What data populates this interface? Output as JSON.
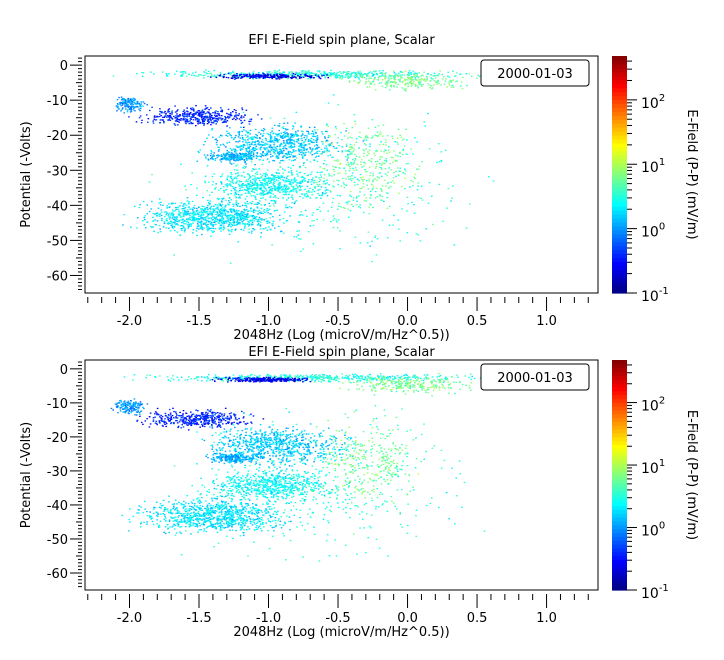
{
  "chart_data": [
    {
      "type": "scatter",
      "title": "EFI  E-Field spin plane, Scalar",
      "xlabel": "2048Hz (Log (microV/m/Hz^0.5))",
      "ylabel": "Potential (-Volts)",
      "annotation": "2000-01-03",
      "xlim": [
        -2.32,
        1.37
      ],
      "ylim": [
        -65,
        2.6
      ],
      "xticks": [
        -2.0,
        -1.5,
        -1.0,
        -0.5,
        0.0,
        0.5,
        1.0
      ],
      "xtick_labels": [
        "-2.0",
        "-1.5",
        "-1.0",
        "-0.5",
        "0.0",
        "0.5",
        "1.0"
      ],
      "yticks": [
        0,
        -10,
        -20,
        -30,
        -40,
        -50,
        -60
      ],
      "ytick_labels": [
        "0",
        "-10",
        "-20",
        "-30",
        "-40",
        "-50",
        "-60"
      ],
      "colorbar": {
        "label": "E-Field (P-P) (mV/m)",
        "scale": "log",
        "range": [
          0.1,
          480
        ],
        "colormap": "jet",
        "ticks": [
          {
            "base": "10",
            "exp": "2",
            "value": 100
          },
          {
            "base": "10",
            "exp": "1",
            "value": 10
          },
          {
            "base": "10",
            "exp": "0",
            "value": 1
          },
          {
            "base": "10",
            "exp": "-1",
            "value": 0.1
          }
        ]
      },
      "point_clusters": [
        {
          "x": [
            -2.2,
            0.8
          ],
          "y": [
            -4,
            -1
          ],
          "log_efield": 0.5,
          "count": 500
        },
        {
          "x": [
            -1.5,
            -0.5
          ],
          "y": [
            -4,
            -2
          ],
          "log_efield": -0.6,
          "count": 250
        },
        {
          "x": [
            -0.6,
            0.6
          ],
          "y": [
            -8,
            -1
          ],
          "log_efield": 0.8,
          "count": 250
        },
        {
          "x": [
            -2.15,
            -1.85
          ],
          "y": [
            -14,
            -8
          ],
          "log_efield": 0.0,
          "count": 150
        },
        {
          "x": [
            -2.05,
            -1.0
          ],
          "y": [
            -18,
            -11
          ],
          "log_efield": -0.4,
          "count": 400
        },
        {
          "x": [
            -1.6,
            -0.3
          ],
          "y": [
            -30,
            -15
          ],
          "log_efield": 0.2,
          "count": 700
        },
        {
          "x": [
            -1.5,
            -1.0
          ],
          "y": [
            -28,
            -24
          ],
          "log_efield": 0.1,
          "count": 200
        },
        {
          "x": [
            -1.6,
            -0.4
          ],
          "y": [
            -40,
            -28
          ],
          "log_efield": 0.4,
          "count": 600
        },
        {
          "x": [
            -2.1,
            -0.7
          ],
          "y": [
            -50,
            -36
          ],
          "log_efield": 0.3,
          "count": 900
        },
        {
          "x": [
            -2.0,
            0.8
          ],
          "y": [
            -62,
            -5
          ],
          "log_efield": 0.5,
          "count": 400
        },
        {
          "x": [
            -0.8,
            0.2
          ],
          "y": [
            -45,
            -10
          ],
          "log_efield": 0.8,
          "count": 300
        }
      ]
    },
    {
      "type": "scatter",
      "title": "EFI  E-Field spin plane, Scalar",
      "xlabel": "2048Hz (Log (microV/m/Hz^0.5))",
      "ylabel": "Potential (-Volts)",
      "annotation": "2000-01-03",
      "xlim": [
        -2.32,
        1.37
      ],
      "ylim": [
        -65,
        2.6
      ],
      "xticks": [
        -2.0,
        -1.5,
        -1.0,
        -0.5,
        0.0,
        0.5,
        1.0
      ],
      "xtick_labels": [
        "-2.0",
        "-1.5",
        "-1.0",
        "-0.5",
        "0.0",
        "0.5",
        "1.0"
      ],
      "yticks": [
        0,
        -10,
        -20,
        -30,
        -40,
        -50,
        -60
      ],
      "ytick_labels": [
        "0",
        "-10",
        "-20",
        "-30",
        "-40",
        "-50",
        "-60"
      ],
      "colorbar": {
        "label": "E-Field (P-P) (mV/m)",
        "scale": "log",
        "range": [
          0.1,
          480
        ],
        "colormap": "jet",
        "ticks": [
          {
            "base": "10",
            "exp": "2",
            "value": 100
          },
          {
            "base": "10",
            "exp": "1",
            "value": 10
          },
          {
            "base": "10",
            "exp": "0",
            "value": 1
          },
          {
            "base": "10",
            "exp": "-1",
            "value": 0.1
          }
        ]
      },
      "point_clusters": [
        {
          "x": [
            -2.2,
            0.8
          ],
          "y": [
            -4,
            -1
          ],
          "log_efield": 0.5,
          "count": 500
        },
        {
          "x": [
            -1.5,
            -0.5
          ],
          "y": [
            -4,
            -2
          ],
          "log_efield": -0.6,
          "count": 250
        },
        {
          "x": [
            -0.6,
            0.6
          ],
          "y": [
            -8,
            -1
          ],
          "log_efield": 0.8,
          "count": 250
        },
        {
          "x": [
            -2.15,
            -1.85
          ],
          "y": [
            -14,
            -8
          ],
          "log_efield": 0.0,
          "count": 150
        },
        {
          "x": [
            -2.05,
            -1.0
          ],
          "y": [
            -18,
            -11
          ],
          "log_efield": -0.4,
          "count": 400
        },
        {
          "x": [
            -1.6,
            -0.3
          ],
          "y": [
            -30,
            -15
          ],
          "log_efield": 0.2,
          "count": 700
        },
        {
          "x": [
            -1.5,
            -1.0
          ],
          "y": [
            -28,
            -24
          ],
          "log_efield": 0.1,
          "count": 200
        },
        {
          "x": [
            -1.6,
            -0.4
          ],
          "y": [
            -40,
            -28
          ],
          "log_efield": 0.4,
          "count": 600
        },
        {
          "x": [
            -2.1,
            -0.7
          ],
          "y": [
            -50,
            -36
          ],
          "log_efield": 0.3,
          "count": 900
        },
        {
          "x": [
            -2.0,
            0.8
          ],
          "y": [
            -62,
            -5
          ],
          "log_efield": 0.5,
          "count": 400
        },
        {
          "x": [
            -0.8,
            0.2
          ],
          "y": [
            -45,
            -10
          ],
          "log_efield": 0.8,
          "count": 300
        }
      ]
    }
  ]
}
